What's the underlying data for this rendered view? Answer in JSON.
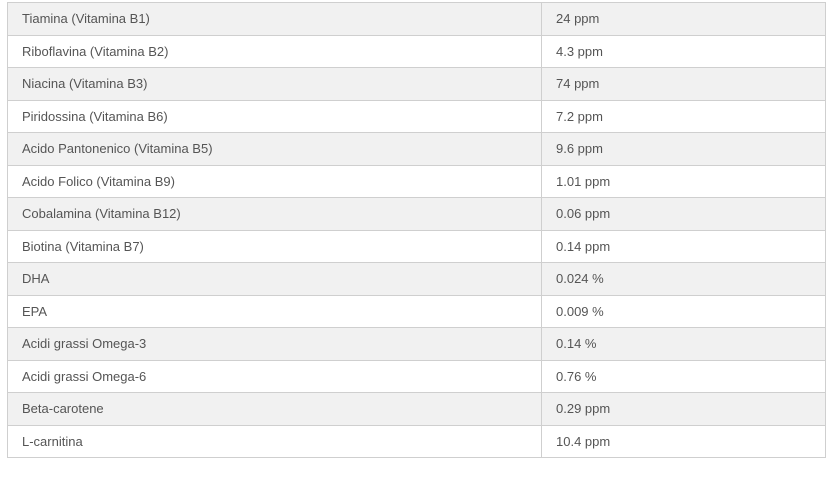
{
  "rows": [
    {
      "name": "Tiamina (Vitamina B1)",
      "value": "24 ppm"
    },
    {
      "name": "Riboflavina (Vitamina B2)",
      "value": "4.3 ppm"
    },
    {
      "name": "Niacina (Vitamina B3)",
      "value": "74 ppm"
    },
    {
      "name": "Piridossina (Vitamina B6)",
      "value": "7.2 ppm"
    },
    {
      "name": "Acido Pantonenico (Vitamina B5)",
      "value": "9.6 ppm"
    },
    {
      "name": "Acido Folico (Vitamina B9)",
      "value": "1.01 ppm"
    },
    {
      "name": "Cobalamina (Vitamina B12)",
      "value": "0.06 ppm"
    },
    {
      "name": "Biotina (Vitamina B7)",
      "value": "0.14 ppm"
    },
    {
      "name": "DHA",
      "value": "0.024 %"
    },
    {
      "name": "EPA",
      "value": "0.009 %"
    },
    {
      "name": "Acidi grassi Omega-3",
      "value": "0.14 %"
    },
    {
      "name": "Acidi grassi Omega-6",
      "value": "0.76 %"
    },
    {
      "name": "Beta-carotene",
      "value": "0.29 ppm"
    },
    {
      "name": "L-carnitina",
      "value": "10.4 ppm"
    }
  ]
}
